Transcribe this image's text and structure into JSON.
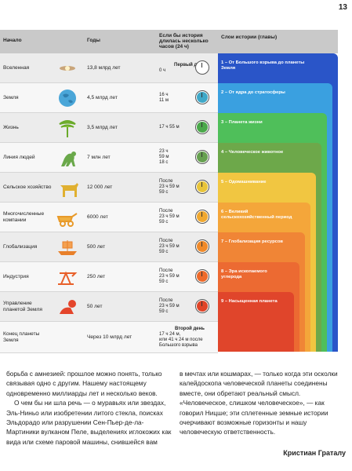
{
  "page_number": "13",
  "header": {
    "col_start": "Начало",
    "col_years": "Годы",
    "col_if_history": "Если бы история длилась несколько часов (24 ч)",
    "col_layers": "Слои истории (главы)"
  },
  "rows": [
    {
      "name": "Вселенная",
      "years": "13,8 млрд лет",
      "time": [
        "Первый день",
        "0 ч"
      ],
      "clock_color": "#ffffff",
      "icon": "galaxy-icon"
    },
    {
      "name": "Земля",
      "years": "4,5 млрд лет",
      "time": [
        "16 ч",
        "11 м"
      ],
      "clock_color": "#3fa8c8",
      "icon": "earth-icon"
    },
    {
      "name": "Жизнь",
      "years": "3,5 млрд лет",
      "time": [
        "17 ч 55 м"
      ],
      "clock_color": "#4aa84a",
      "icon": "tree-icon"
    },
    {
      "name": "Линия людей",
      "years": "7 млн лет",
      "time": [
        "23 ч",
        "59 м",
        "18 с"
      ],
      "clock_color": "#66a050",
      "icon": "ape-icon"
    },
    {
      "name": "Сельское хозяйство",
      "years": "12 000 лет",
      "time": [
        "После",
        "23 ч 59 м",
        "59 с"
      ],
      "clock_color": "#e8c43a",
      "icon": "cow-icon"
    },
    {
      "name": "Многочисленные компании",
      "years": "6000 лет",
      "time": [
        "После",
        "23 ч 59 м",
        "59 с"
      ],
      "clock_color": "#f0a830",
      "icon": "cart-icon"
    },
    {
      "name": "Глобализация",
      "years": "500 лет",
      "time": [
        "После",
        "23 ч 59 м",
        "59 с"
      ],
      "clock_color": "#f08a2a",
      "icon": "ship-icon"
    },
    {
      "name": "Индустрия",
      "years": "250 лет",
      "time": [
        "После",
        "23 ч 59 м",
        "59 с"
      ],
      "clock_color": "#ee6a2a",
      "icon": "pump-icon"
    },
    {
      "name": "Управление планетой Земля",
      "years": "50 лет",
      "time": [
        "После",
        "23 ч 59 м",
        "59 с"
      ],
      "clock_color": "#e04428",
      "icon": "baby-icon"
    },
    {
      "name": "Конец планеты Земля",
      "years": "Через 10 млрд лет",
      "time": [
        "Второй день",
        "17 ч 24 м,",
        "или 41 ч 24 м после",
        "Большого взрыва"
      ],
      "clock_color": "",
      "icon": ""
    }
  ],
  "layers": [
    {
      "label": "1 – От Большого взрыва до планеты Земля",
      "color": "#2a55c8"
    },
    {
      "label": "2 – От ядра до стратосферы",
      "color": "#3aa0e0"
    },
    {
      "label": "3 – Планета жизни",
      "color": "#4fbf5a"
    },
    {
      "label": "4 – Человеческое животное",
      "color": "#6da84a"
    },
    {
      "label": "5 – Одомашнивание",
      "color": "#f1c641"
    },
    {
      "label": "6 – Великий сельскохозяйственный период",
      "color": "#f4a63a"
    },
    {
      "label": "7 – Глобализация ресурсов",
      "color": "#f08536"
    },
    {
      "label": "8 – Эра ископаемого углерода",
      "color": "#ec6a32"
    },
    {
      "label": "9 – Насыщенная планета",
      "color": "#e0452b"
    }
  ],
  "body": {
    "left_p1": "борьба с амнезией: прошлое можно понять, только связывая одно с другим. Нашему настоящему одновременно миллиарды лет и несколько веков.",
    "left_p2": "О чем бы ни шла речь — о муравьях или звездах, Эль-Ниньо или изобретении литого стекла, поисках Эльдорадо или разрушении Сен-Пьер-де-ла-Мартиники вулканом Пеле, выделениях иглокожих как вида или схеме паровой машины, снившейся вам",
    "right_p1": "в мечтах или кошмарах, — только когда эти осколки калейдоскопа человеческой планеты соединены вместе, они обретают реальный смысл. «Человеческое, слишком человеческое», — как говорил Ницше; эти сплетенные земные истории очерчивают возможные горизонты и нашу человеческую ответственность.",
    "author": "Кристиан Граталу"
  }
}
